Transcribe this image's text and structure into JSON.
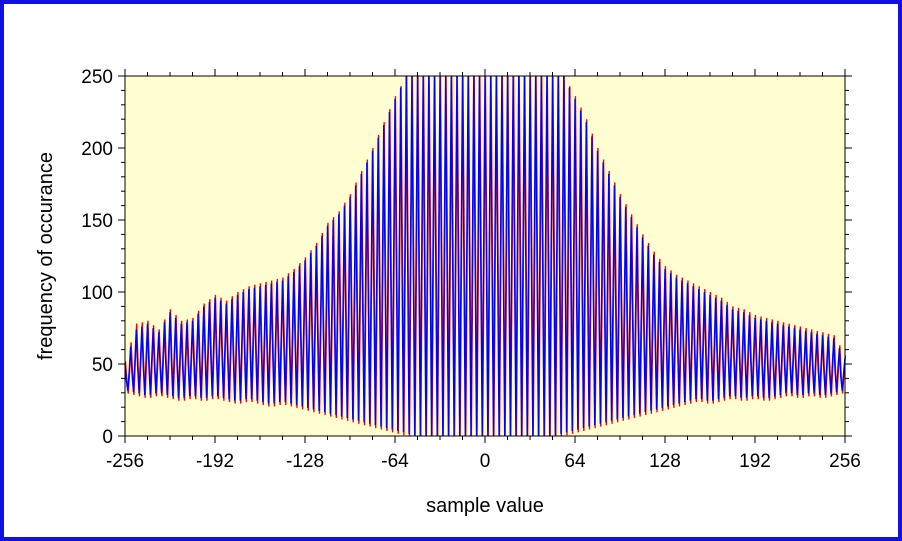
{
  "chart_data": {
    "type": "line",
    "xlabel": "sample value",
    "ylabel": "frequency of occurance",
    "xlim": [
      -256,
      256
    ],
    "ylim": [
      0,
      250
    ],
    "x_ticks": [
      "-256",
      "-192",
      "-128",
      "-64",
      "0",
      "64",
      "128",
      "192",
      "256"
    ],
    "y_ticks": [
      "0",
      "50",
      "100",
      "150",
      "200",
      "250"
    ],
    "x_tick_values": [
      -256,
      -192,
      -128,
      -64,
      0,
      64,
      128,
      192,
      256
    ],
    "y_tick_values": [
      0,
      50,
      100,
      150,
      200,
      250
    ],
    "grid": false,
    "legend": "none",
    "plot_background": "#ffffd2",
    "frame_color": "#1010e0",
    "series": [
      {
        "color": "#ff0000",
        "x": [
          -256,
          -248,
          -240,
          -232,
          -224,
          -216,
          -208,
          -200,
          -192,
          -184,
          -176,
          -168,
          -160,
          -152,
          -144,
          -136,
          -128,
          -120,
          -112,
          -104,
          -96,
          -88,
          -80,
          -72,
          -64,
          -56,
          -48,
          -40,
          -32,
          -24,
          -16,
          -8,
          0,
          8,
          16,
          24,
          32,
          40,
          48,
          56,
          64,
          72,
          80,
          88,
          96,
          104,
          112,
          120,
          128,
          136,
          144,
          152,
          160,
          168,
          176,
          184,
          192,
          200,
          208,
          216,
          224,
          232,
          240,
          248,
          256
        ],
        "peak": [
          52,
          78,
          80,
          74,
          88,
          80,
          82,
          92,
          98,
          94,
          100,
          104,
          106,
          108,
          110,
          116,
          124,
          134,
          148,
          156,
          168,
          184,
          200,
          218,
          236,
          250,
          250,
          250,
          250,
          250,
          250,
          250,
          250,
          250,
          250,
          250,
          250,
          250,
          250,
          250,
          236,
          220,
          200,
          184,
          168,
          154,
          140,
          128,
          118,
          112,
          108,
          104,
          100,
          96,
          90,
          88,
          84,
          82,
          80,
          78,
          76,
          74,
          72,
          70,
          56
        ],
        "low": [
          30,
          28,
          26,
          28,
          26,
          24,
          26,
          24,
          26,
          24,
          22,
          24,
          22,
          20,
          22,
          20,
          18,
          16,
          14,
          12,
          10,
          8,
          6,
          4,
          2,
          0,
          0,
          0,
          0,
          0,
          0,
          0,
          0,
          0,
          0,
          0,
          0,
          0,
          0,
          0,
          2,
          4,
          6,
          8,
          10,
          12,
          14,
          16,
          18,
          20,
          22,
          24,
          22,
          24,
          26,
          24,
          26,
          24,
          26,
          28,
          26,
          28,
          26,
          28,
          30
        ]
      },
      {
        "color": "#0000ff",
        "x": [
          -256,
          -248,
          -240,
          -232,
          -224,
          -216,
          -208,
          -200,
          -192,
          -184,
          -176,
          -168,
          -160,
          -152,
          -144,
          -136,
          -128,
          -120,
          -112,
          -104,
          -96,
          -88,
          -80,
          -72,
          -64,
          -56,
          -48,
          -40,
          -32,
          -24,
          -16,
          -8,
          0,
          8,
          16,
          24,
          32,
          40,
          48,
          56,
          64,
          72,
          80,
          88,
          96,
          104,
          112,
          120,
          128,
          136,
          144,
          152,
          160,
          168,
          176,
          184,
          192,
          200,
          208,
          216,
          224,
          232,
          240,
          248,
          256
        ],
        "peak": [
          50,
          74,
          78,
          72,
          86,
          78,
          80,
          90,
          96,
          92,
          98,
          102,
          104,
          106,
          108,
          114,
          122,
          132,
          146,
          154,
          166,
          182,
          198,
          216,
          234,
          250,
          250,
          250,
          250,
          250,
          250,
          250,
          250,
          250,
          250,
          250,
          250,
          250,
          250,
          250,
          234,
          218,
          198,
          182,
          166,
          152,
          138,
          126,
          116,
          110,
          106,
          102,
          98,
          94,
          88,
          86,
          82,
          80,
          78,
          76,
          74,
          72,
          70,
          68,
          54
        ],
        "low": [
          32,
          30,
          28,
          30,
          28,
          26,
          28,
          26,
          28,
          26,
          24,
          26,
          24,
          22,
          24,
          22,
          20,
          18,
          16,
          14,
          12,
          10,
          8,
          6,
          4,
          2,
          0,
          0,
          0,
          0,
          0,
          0,
          0,
          0,
          0,
          0,
          0,
          0,
          0,
          2,
          4,
          6,
          8,
          10,
          12,
          14,
          16,
          18,
          20,
          22,
          24,
          26,
          24,
          26,
          28,
          26,
          28,
          26,
          28,
          30,
          28,
          30,
          28,
          30,
          32
        ]
      }
    ]
  }
}
